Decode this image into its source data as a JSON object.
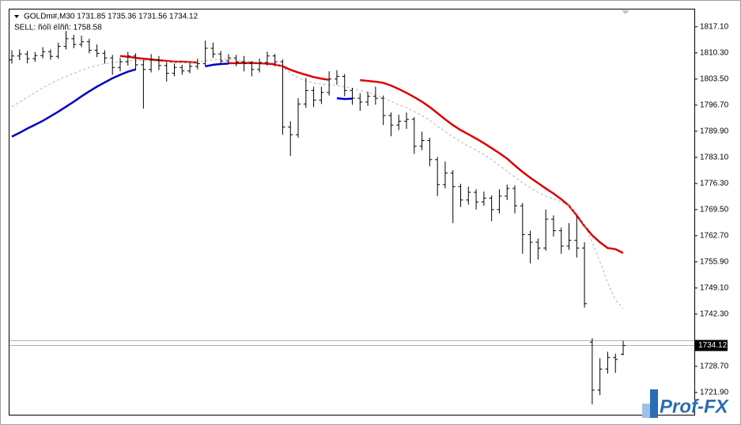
{
  "chart_data": {
    "type": "ohlc",
    "title": "GOLDm#,M30  1731.85 1735.36 1731.56 1734.12",
    "subtitle": "SELL: ñòîï ëîññ: 1758.58",
    "color": "#000000",
    "ohlc": [
      [
        1808.5,
        1811.0,
        1807.5,
        1809.5
      ],
      [
        1809.5,
        1811.2,
        1808.4,
        1810.0
      ],
      [
        1810.0,
        1810.8,
        1807.6,
        1808.8
      ],
      [
        1808.8,
        1810.5,
        1808.0,
        1809.6
      ],
      [
        1809.6,
        1811.8,
        1808.9,
        1810.6
      ],
      [
        1810.6,
        1811.2,
        1808.5,
        1809.4
      ],
      [
        1809.4,
        1813.0,
        1808.8,
        1812.0
      ],
      [
        1812.0,
        1816.0,
        1811.2,
        1814.0
      ],
      [
        1814.0,
        1815.0,
        1811.5,
        1812.5
      ],
      [
        1812.5,
        1814.8,
        1811.8,
        1813.2
      ],
      [
        1813.2,
        1814.0,
        1810.2,
        1811.0
      ],
      [
        1811.0,
        1812.5,
        1809.2,
        1810.2
      ],
      [
        1810.2,
        1811.0,
        1807.5,
        1809.0
      ],
      [
        1809.0,
        1809.8,
        1804.6,
        1806.5
      ],
      [
        1806.5,
        1809.0,
        1805.5,
        1808.0
      ],
      [
        1808.0,
        1810.6,
        1807.0,
        1809.5
      ],
      [
        1809.5,
        1810.2,
        1805.8,
        1807.2
      ],
      [
        1807.2,
        1808.5,
        1795.8,
        1806.0
      ],
      [
        1806.0,
        1810.0,
        1805.2,
        1808.5
      ],
      [
        1808.5,
        1809.5,
        1805.8,
        1807.0
      ],
      [
        1807.0,
        1807.8,
        1802.8,
        1805.0
      ],
      [
        1805.0,
        1807.5,
        1804.2,
        1806.5
      ],
      [
        1806.5,
        1807.2,
        1804.6,
        1805.6
      ],
      [
        1805.6,
        1807.6,
        1805.0,
        1806.8
      ],
      [
        1806.8,
        1808.8,
        1806.0,
        1807.5
      ],
      [
        1807.5,
        1813.5,
        1806.8,
        1811.5
      ],
      [
        1811.5,
        1813.0,
        1809.0,
        1810.0
      ],
      [
        1810.0,
        1810.8,
        1807.2,
        1808.2
      ],
      [
        1808.2,
        1810.0,
        1807.4,
        1809.0
      ],
      [
        1809.0,
        1809.8,
        1806.8,
        1808.0
      ],
      [
        1808.0,
        1809.5,
        1805.5,
        1807.5
      ],
      [
        1807.5,
        1808.2,
        1804.2,
        1806.0
      ],
      [
        1806.0,
        1808.8,
        1805.2,
        1807.8
      ],
      [
        1807.8,
        1810.6,
        1807.0,
        1809.5
      ],
      [
        1809.5,
        1810.0,
        1806.8,
        1808.0
      ],
      [
        1808.0,
        1808.6,
        1789.0,
        1791.0
      ],
      [
        1791.0,
        1792.5,
        1783.5,
        1789.0
      ],
      [
        1789.0,
        1798.5,
        1788.2,
        1797.0
      ],
      [
        1797.0,
        1803.8,
        1796.0,
        1800.5
      ],
      [
        1800.5,
        1801.5,
        1796.2,
        1798.0
      ],
      [
        1798.0,
        1801.5,
        1797.0,
        1800.0
      ],
      [
        1800.0,
        1805.5,
        1799.2,
        1803.5
      ],
      [
        1803.5,
        1805.8,
        1802.0,
        1804.2
      ],
      [
        1804.2,
        1804.8,
        1799.0,
        1800.5
      ],
      [
        1800.5,
        1801.2,
        1796.8,
        1798.5
      ],
      [
        1798.5,
        1799.8,
        1795.2,
        1797.5
      ],
      [
        1797.5,
        1800.2,
        1796.5,
        1799.0
      ],
      [
        1799.0,
        1801.5,
        1796.8,
        1798.5
      ],
      [
        1798.5,
        1799.2,
        1791.5,
        1794.0
      ],
      [
        1794.0,
        1794.8,
        1788.6,
        1791.5
      ],
      [
        1791.5,
        1794.2,
        1790.2,
        1792.5
      ],
      [
        1792.5,
        1794.8,
        1790.5,
        1793.0
      ],
      [
        1793.0,
        1793.6,
        1784.0,
        1786.0
      ],
      [
        1786.0,
        1789.8,
        1785.0,
        1787.5
      ],
      [
        1787.5,
        1788.2,
        1780.8,
        1782.5
      ],
      [
        1782.5,
        1783.2,
        1773.0,
        1776.0
      ],
      [
        1776.0,
        1782.0,
        1775.0,
        1779.0
      ],
      [
        1779.0,
        1779.8,
        1766.0,
        1775.5
      ],
      [
        1775.5,
        1776.2,
        1770.2,
        1772.0
      ],
      [
        1772.0,
        1775.5,
        1770.8,
        1774.0
      ],
      [
        1774.0,
        1774.8,
        1769.5,
        1771.5
      ],
      [
        1771.5,
        1774.2,
        1770.5,
        1772.5
      ],
      [
        1772.5,
        1773.2,
        1766.5,
        1769.5
      ],
      [
        1769.5,
        1774.8,
        1768.5,
        1773.0
      ],
      [
        1773.0,
        1776.0,
        1772.0,
        1775.0
      ],
      [
        1775.0,
        1775.8,
        1768.5,
        1770.5
      ],
      [
        1770.5,
        1771.2,
        1758.0,
        1763.0
      ],
      [
        1763.0,
        1764.0,
        1755.5,
        1761.0
      ],
      [
        1761.0,
        1762.0,
        1756.5,
        1759.5
      ],
      [
        1759.5,
        1769.5,
        1758.8,
        1767.0
      ],
      [
        1767.0,
        1768.0,
        1762.5,
        1764.0
      ],
      [
        1764.0,
        1764.8,
        1758.0,
        1760.0
      ],
      [
        1760.0,
        1766.0,
        1759.0,
        1761.5
      ],
      [
        1761.5,
        1767.8,
        1757.0,
        1759.5
      ],
      [
        1759.5,
        1761.0,
        1744.0,
        1745.0
      ],
      [
        1735.0,
        1736.0,
        1718.8,
        1722.5
      ],
      [
        1722.5,
        1730.8,
        1721.2,
        1728.0
      ],
      [
        1728.0,
        1732.5,
        1726.8,
        1731.0
      ],
      [
        1731.0,
        1732.0,
        1727.0,
        1730.5
      ],
      [
        1731.85,
        1735.36,
        1731.56,
        1734.12
      ]
    ],
    "series": [
      {
        "color": "#0000c8",
        "values": [
          1788.5,
          1789.5,
          1790.6,
          1791.6,
          1792.6,
          1793.8,
          1795.0,
          1796.3,
          1797.6,
          1799.0,
          1800.3,
          1801.5,
          1802.6,
          1803.7,
          1804.6,
          1805.4,
          1806.0,
          null,
          null,
          null,
          null,
          null,
          null,
          null,
          null,
          1806.8,
          1807.2,
          1807.4,
          1807.5,
          null,
          null,
          null,
          null,
          null,
          null,
          null,
          null,
          null,
          null,
          null,
          null,
          null,
          1798.5,
          1798.3,
          1798.4,
          null,
          null,
          null,
          null,
          null,
          null,
          null,
          null,
          null,
          null,
          null,
          null,
          null,
          null,
          null,
          null,
          null,
          null,
          null,
          null,
          null,
          null,
          null,
          null,
          null,
          null,
          null,
          null,
          null,
          null,
          null,
          null,
          null,
          null,
          null
        ]
      },
      {
        "color": "#e00000",
        "values": [
          null,
          null,
          null,
          null,
          null,
          null,
          null,
          null,
          null,
          null,
          null,
          null,
          null,
          null,
          1809.5,
          1809.3,
          1809.0,
          1808.8,
          1808.6,
          1808.4,
          1808.2,
          1808.0,
          1808.0,
          1807.9,
          1807.8,
          null,
          null,
          null,
          1807.6,
          1807.6,
          1807.7,
          1807.7,
          1807.6,
          1807.5,
          1807.3,
          1806.8,
          1805.9,
          1805.2,
          1804.6,
          1804.0,
          1803.6,
          1803.3,
          null,
          null,
          null,
          1803.2,
          1803.0,
          1802.8,
          1802.5,
          1801.8,
          1800.9,
          1799.9,
          1798.8,
          1797.6,
          1796.2,
          1794.6,
          1793.0,
          1791.5,
          1790.2,
          1789.1,
          1788.0,
          1786.8,
          1785.5,
          1784.2,
          1782.8,
          1781.0,
          1779.3,
          1777.8,
          1776.4,
          1775.0,
          1773.7,
          1772.2,
          1770.5,
          1768.0,
          1765.2,
          1762.8,
          1761.0,
          1759.5,
          1759.2,
          1758.2
        ]
      },
      {
        "color": "#b4b4b4",
        "dashed": true,
        "values": [
          1796.3,
          1797.5,
          1798.8,
          1800.0,
          1801.2,
          1802.3,
          1803.3,
          1804.2,
          1805.0,
          1805.8,
          1806.5,
          1807.0,
          1807.5,
          1807.8,
          1808.0,
          1808.2,
          1808.3,
          1808.3,
          1808.2,
          1808.1,
          1808.0,
          1807.9,
          1807.8,
          1807.8,
          1807.9,
          1808.2,
          1808.5,
          1808.6,
          1808.6,
          1808.5,
          1808.3,
          1808.0,
          1807.8,
          1807.8,
          1807.7,
          1806.5,
          1805.0,
          1803.8,
          1803.0,
          1802.5,
          1802.2,
          1802.0,
          1801.8,
          1801.5,
          1801.0,
          1800.5,
          1800.0,
          1799.4,
          1798.6,
          1797.7,
          1796.8,
          1796.0,
          1795.0,
          1794.0,
          1792.8,
          1791.2,
          1789.8,
          1788.5,
          1787.2,
          1786.0,
          1785.0,
          1783.8,
          1782.5,
          1781.0,
          1779.5,
          1778.0,
          1776.5,
          1775.2,
          1774.0,
          1773.0,
          1772.3,
          1771.5,
          1770.5,
          1768.5,
          1765.5,
          1761.0,
          1756.0,
          1750.5,
          1746.0,
          1743.8
        ]
      }
    ],
    "ylim": [
      1716.1,
      1821.6
    ],
    "yticks": [
      {
        "value": 1817.1,
        "label": "1817.10"
      },
      {
        "value": 1810.3,
        "label": "1810.30"
      },
      {
        "value": 1803.5,
        "label": "1803.50"
      },
      {
        "value": 1796.7,
        "label": "1796.70"
      },
      {
        "value": 1789.9,
        "label": "1789.90"
      },
      {
        "value": 1783.1,
        "label": "1783.10"
      },
      {
        "value": 1776.3,
        "label": "1776.30"
      },
      {
        "value": 1769.5,
        "label": "1769.50"
      },
      {
        "value": 1762.7,
        "label": "1762.70"
      },
      {
        "value": 1755.9,
        "label": "1755.90"
      },
      {
        "value": 1749.1,
        "label": "1749.10"
      },
      {
        "value": 1742.3,
        "label": "1742.30"
      },
      {
        "value": 1728.7,
        "label": "1728.70"
      },
      {
        "value": 1721.9,
        "label": "1721.90"
      }
    ],
    "bid": 1734.12,
    "ask": 1735.4
  },
  "watermark": "Prof-FX"
}
